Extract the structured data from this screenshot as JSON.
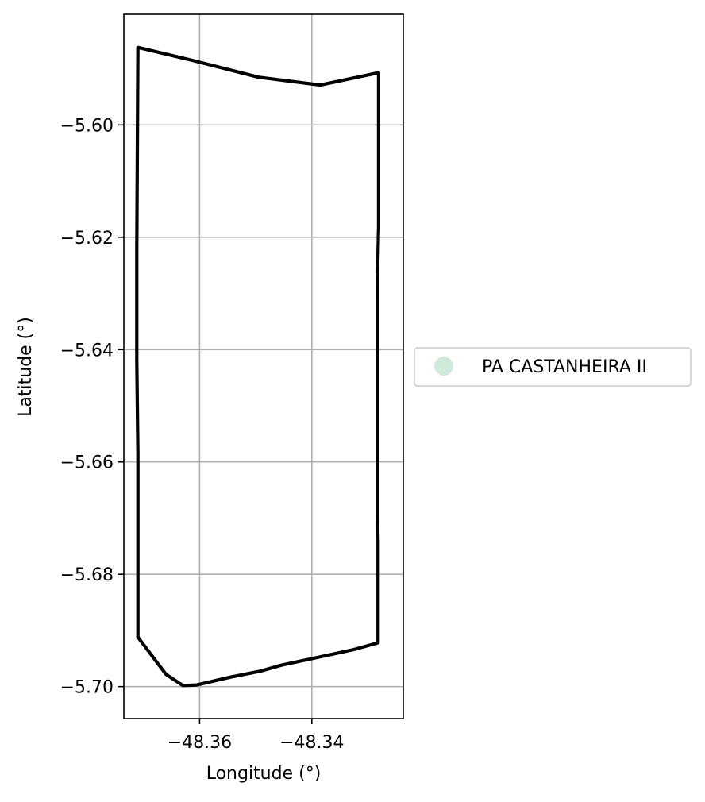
{
  "chart_data": {
    "type": "map",
    "title": "",
    "xlabel": "Longitude (°)",
    "ylabel": "Latitude (°)",
    "xlim": [
      -48.3735,
      -48.3237
    ],
    "ylim": [
      -5.7057,
      -5.5803
    ],
    "xticks": [
      -48.36,
      -48.34
    ],
    "xtick_labels": [
      "−48.36",
      "−48.34"
    ],
    "yticks": [
      -5.6,
      -5.62,
      -5.64,
      -5.66,
      -5.68,
      -5.7
    ],
    "ytick_labels": [
      "−5.60",
      "−5.62",
      "−5.64",
      "−5.66",
      "−5.68",
      "−5.70"
    ],
    "grid": true,
    "legend": {
      "placement": "center-right, outside axes",
      "entries": [
        {
          "label": "PA CASTANHEIRA II",
          "color": "#cfeadb",
          "marker": "circle"
        }
      ]
    },
    "series": [
      {
        "name": "PA CASTANHEIRA II",
        "color": "#000000",
        "geometry": "polygon-outline",
        "points": [
          [
            -48.371,
            -5.5862
          ],
          [
            -48.3613,
            -5.5885
          ],
          [
            -48.3495,
            -5.5915
          ],
          [
            -48.3385,
            -5.5929
          ],
          [
            -48.3281,
            -5.5907
          ],
          [
            -48.3281,
            -5.618
          ],
          [
            -48.3283,
            -5.627
          ],
          [
            -48.3283,
            -5.631
          ],
          [
            -48.3283,
            -5.653
          ],
          [
            -48.3283,
            -5.67
          ],
          [
            -48.3282,
            -5.674
          ],
          [
            -48.3282,
            -5.6922
          ],
          [
            -48.3325,
            -5.6934
          ],
          [
            -48.3455,
            -5.6962
          ],
          [
            -48.349,
            -5.6972
          ],
          [
            -48.3545,
            -5.6983
          ],
          [
            -48.3605,
            -5.6997
          ],
          [
            -48.363,
            -5.6998
          ],
          [
            -48.366,
            -5.6978
          ],
          [
            -48.371,
            -5.6912
          ],
          [
            -48.371,
            -5.67
          ],
          [
            -48.371,
            -5.6585
          ],
          [
            -48.3712,
            -5.642
          ],
          [
            -48.3712,
            -5.622
          ],
          [
            -48.371,
            -5.5862
          ]
        ]
      }
    ]
  }
}
